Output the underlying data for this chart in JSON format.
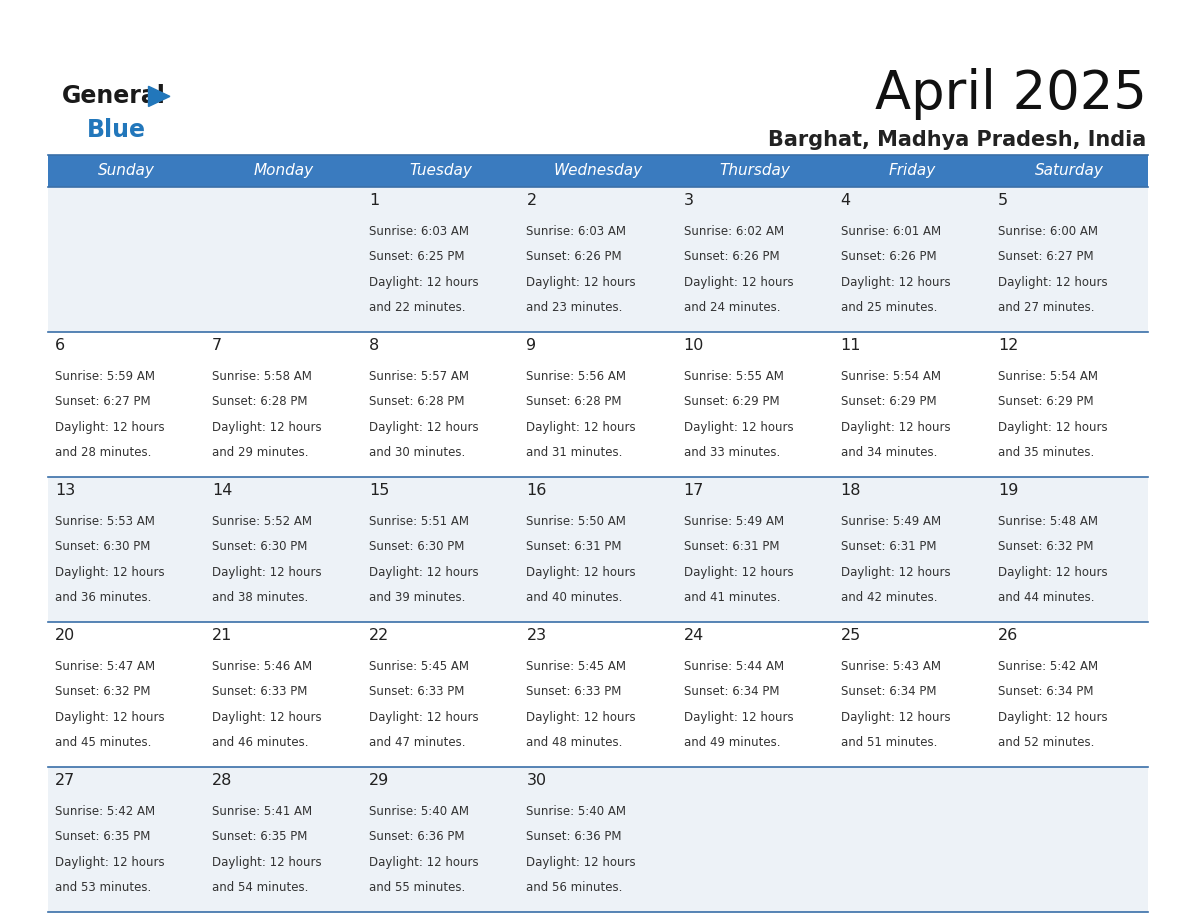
{
  "title": "April 2025",
  "subtitle": "Barghat, Madhya Pradesh, India",
  "header_bg_color": "#3a7bbf",
  "header_text_color": "#ffffff",
  "day_names": [
    "Sunday",
    "Monday",
    "Tuesday",
    "Wednesday",
    "Thursday",
    "Friday",
    "Saturday"
  ],
  "row_bg_colors": [
    "#edf2f7",
    "#ffffff",
    "#edf2f7",
    "#ffffff",
    "#edf2f7"
  ],
  "cell_border_color": "#3a6fa8",
  "day_num_color": "#222222",
  "day_text_color": "#333333",
  "logo_color_general": "#1a1a1a",
  "logo_color_blue": "#2277bb",
  "logo_triangle_color": "#2277bb",
  "calendar_data": [
    [
      {
        "day": null,
        "sunrise": null,
        "sunset": null,
        "daylight_line1": null,
        "daylight_line2": null
      },
      {
        "day": null,
        "sunrise": null,
        "sunset": null,
        "daylight_line1": null,
        "daylight_line2": null
      },
      {
        "day": "1",
        "sunrise": "Sunrise: 6:03 AM",
        "sunset": "Sunset: 6:25 PM",
        "daylight_line1": "Daylight: 12 hours",
        "daylight_line2": "and 22 minutes."
      },
      {
        "day": "2",
        "sunrise": "Sunrise: 6:03 AM",
        "sunset": "Sunset: 6:26 PM",
        "daylight_line1": "Daylight: 12 hours",
        "daylight_line2": "and 23 minutes."
      },
      {
        "day": "3",
        "sunrise": "Sunrise: 6:02 AM",
        "sunset": "Sunset: 6:26 PM",
        "daylight_line1": "Daylight: 12 hours",
        "daylight_line2": "and 24 minutes."
      },
      {
        "day": "4",
        "sunrise": "Sunrise: 6:01 AM",
        "sunset": "Sunset: 6:26 PM",
        "daylight_line1": "Daylight: 12 hours",
        "daylight_line2": "and 25 minutes."
      },
      {
        "day": "5",
        "sunrise": "Sunrise: 6:00 AM",
        "sunset": "Sunset: 6:27 PM",
        "daylight_line1": "Daylight: 12 hours",
        "daylight_line2": "and 27 minutes."
      }
    ],
    [
      {
        "day": "6",
        "sunrise": "Sunrise: 5:59 AM",
        "sunset": "Sunset: 6:27 PM",
        "daylight_line1": "Daylight: 12 hours",
        "daylight_line2": "and 28 minutes."
      },
      {
        "day": "7",
        "sunrise": "Sunrise: 5:58 AM",
        "sunset": "Sunset: 6:28 PM",
        "daylight_line1": "Daylight: 12 hours",
        "daylight_line2": "and 29 minutes."
      },
      {
        "day": "8",
        "sunrise": "Sunrise: 5:57 AM",
        "sunset": "Sunset: 6:28 PM",
        "daylight_line1": "Daylight: 12 hours",
        "daylight_line2": "and 30 minutes."
      },
      {
        "day": "9",
        "sunrise": "Sunrise: 5:56 AM",
        "sunset": "Sunset: 6:28 PM",
        "daylight_line1": "Daylight: 12 hours",
        "daylight_line2": "and 31 minutes."
      },
      {
        "day": "10",
        "sunrise": "Sunrise: 5:55 AM",
        "sunset": "Sunset: 6:29 PM",
        "daylight_line1": "Daylight: 12 hours",
        "daylight_line2": "and 33 minutes."
      },
      {
        "day": "11",
        "sunrise": "Sunrise: 5:54 AM",
        "sunset": "Sunset: 6:29 PM",
        "daylight_line1": "Daylight: 12 hours",
        "daylight_line2": "and 34 minutes."
      },
      {
        "day": "12",
        "sunrise": "Sunrise: 5:54 AM",
        "sunset": "Sunset: 6:29 PM",
        "daylight_line1": "Daylight: 12 hours",
        "daylight_line2": "and 35 minutes."
      }
    ],
    [
      {
        "day": "13",
        "sunrise": "Sunrise: 5:53 AM",
        "sunset": "Sunset: 6:30 PM",
        "daylight_line1": "Daylight: 12 hours",
        "daylight_line2": "and 36 minutes."
      },
      {
        "day": "14",
        "sunrise": "Sunrise: 5:52 AM",
        "sunset": "Sunset: 6:30 PM",
        "daylight_line1": "Daylight: 12 hours",
        "daylight_line2": "and 38 minutes."
      },
      {
        "day": "15",
        "sunrise": "Sunrise: 5:51 AM",
        "sunset": "Sunset: 6:30 PM",
        "daylight_line1": "Daylight: 12 hours",
        "daylight_line2": "and 39 minutes."
      },
      {
        "day": "16",
        "sunrise": "Sunrise: 5:50 AM",
        "sunset": "Sunset: 6:31 PM",
        "daylight_line1": "Daylight: 12 hours",
        "daylight_line2": "and 40 minutes."
      },
      {
        "day": "17",
        "sunrise": "Sunrise: 5:49 AM",
        "sunset": "Sunset: 6:31 PM",
        "daylight_line1": "Daylight: 12 hours",
        "daylight_line2": "and 41 minutes."
      },
      {
        "day": "18",
        "sunrise": "Sunrise: 5:49 AM",
        "sunset": "Sunset: 6:31 PM",
        "daylight_line1": "Daylight: 12 hours",
        "daylight_line2": "and 42 minutes."
      },
      {
        "day": "19",
        "sunrise": "Sunrise: 5:48 AM",
        "sunset": "Sunset: 6:32 PM",
        "daylight_line1": "Daylight: 12 hours",
        "daylight_line2": "and 44 minutes."
      }
    ],
    [
      {
        "day": "20",
        "sunrise": "Sunrise: 5:47 AM",
        "sunset": "Sunset: 6:32 PM",
        "daylight_line1": "Daylight: 12 hours",
        "daylight_line2": "and 45 minutes."
      },
      {
        "day": "21",
        "sunrise": "Sunrise: 5:46 AM",
        "sunset": "Sunset: 6:33 PM",
        "daylight_line1": "Daylight: 12 hours",
        "daylight_line2": "and 46 minutes."
      },
      {
        "day": "22",
        "sunrise": "Sunrise: 5:45 AM",
        "sunset": "Sunset: 6:33 PM",
        "daylight_line1": "Daylight: 12 hours",
        "daylight_line2": "and 47 minutes."
      },
      {
        "day": "23",
        "sunrise": "Sunrise: 5:45 AM",
        "sunset": "Sunset: 6:33 PM",
        "daylight_line1": "Daylight: 12 hours",
        "daylight_line2": "and 48 minutes."
      },
      {
        "day": "24",
        "sunrise": "Sunrise: 5:44 AM",
        "sunset": "Sunset: 6:34 PM",
        "daylight_line1": "Daylight: 12 hours",
        "daylight_line2": "and 49 minutes."
      },
      {
        "day": "25",
        "sunrise": "Sunrise: 5:43 AM",
        "sunset": "Sunset: 6:34 PM",
        "daylight_line1": "Daylight: 12 hours",
        "daylight_line2": "and 51 minutes."
      },
      {
        "day": "26",
        "sunrise": "Sunrise: 5:42 AM",
        "sunset": "Sunset: 6:34 PM",
        "daylight_line1": "Daylight: 12 hours",
        "daylight_line2": "and 52 minutes."
      }
    ],
    [
      {
        "day": "27",
        "sunrise": "Sunrise: 5:42 AM",
        "sunset": "Sunset: 6:35 PM",
        "daylight_line1": "Daylight: 12 hours",
        "daylight_line2": "and 53 minutes."
      },
      {
        "day": "28",
        "sunrise": "Sunrise: 5:41 AM",
        "sunset": "Sunset: 6:35 PM",
        "daylight_line1": "Daylight: 12 hours",
        "daylight_line2": "and 54 minutes."
      },
      {
        "day": "29",
        "sunrise": "Sunrise: 5:40 AM",
        "sunset": "Sunset: 6:36 PM",
        "daylight_line1": "Daylight: 12 hours",
        "daylight_line2": "and 55 minutes."
      },
      {
        "day": "30",
        "sunrise": "Sunrise: 5:40 AM",
        "sunset": "Sunset: 6:36 PM",
        "daylight_line1": "Daylight: 12 hours",
        "daylight_line2": "and 56 minutes."
      },
      {
        "day": null,
        "sunrise": null,
        "sunset": null,
        "daylight_line1": null,
        "daylight_line2": null
      },
      {
        "day": null,
        "sunrise": null,
        "sunset": null,
        "daylight_line1": null,
        "daylight_line2": null
      },
      {
        "day": null,
        "sunrise": null,
        "sunset": null,
        "daylight_line1": null,
        "daylight_line2": null
      }
    ]
  ]
}
